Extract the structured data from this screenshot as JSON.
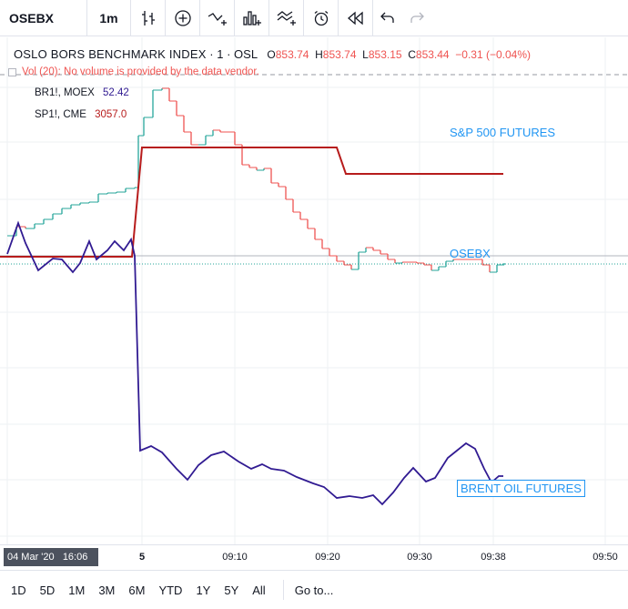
{
  "toolbar": {
    "symbol": "OSEBX",
    "interval": "1m",
    "icons": [
      "bar-style-icon",
      "add-compare-icon",
      "indicators-icon",
      "financials-icon",
      "templates-icon",
      "alert-icon",
      "replay-icon",
      "undo-icon",
      "redo-icon"
    ]
  },
  "legend": {
    "title": "OSLO BORS BENCHMARK INDEX",
    "sep1": "·",
    "interval": "1",
    "sep2": "·",
    "exchange": "OSL",
    "open_k": "O",
    "open": "853.74",
    "high_k": "H",
    "high": "853.74",
    "low_k": "L",
    "low": "853.15",
    "close_k": "C",
    "close": "853.44",
    "change": "−0.31 (−0.04%)",
    "volume_note": "Vol (20): No volume is provided by the data vendor.",
    "compare": [
      {
        "symbol": "BR1!, MOEX",
        "value": "52.42",
        "color": "#311b92"
      },
      {
        "symbol": "SP1!, CME",
        "value": "3057.0",
        "color": "#b71c1c"
      }
    ]
  },
  "annotations": {
    "sp": "S&P 500 FUTURES",
    "osebx": "OSEBX",
    "brent": "BRENT OIL FUTURES"
  },
  "time_axis": {
    "cursor_date": "04 Mar '20",
    "cursor_time": "16:06",
    "ticks": [
      {
        "label": "5",
        "bold": true
      },
      {
        "label": "09:10",
        "bold": false
      },
      {
        "label": "09:20",
        "bold": false
      },
      {
        "label": "09:30",
        "bold": false
      },
      {
        "label": "09:38",
        "bold": false
      },
      {
        "label": "09:50",
        "bold": false
      }
    ]
  },
  "range_bar": {
    "ranges": [
      "1D",
      "5D",
      "1M",
      "3M",
      "6M",
      "YTD",
      "1Y",
      "5Y",
      "All"
    ],
    "goto": "Go to..."
  },
  "colors": {
    "up": "#26a69a",
    "down": "#ef5350",
    "brent": "#311b92",
    "sp": "#b71c1c",
    "accent": "#2196f3"
  }
}
